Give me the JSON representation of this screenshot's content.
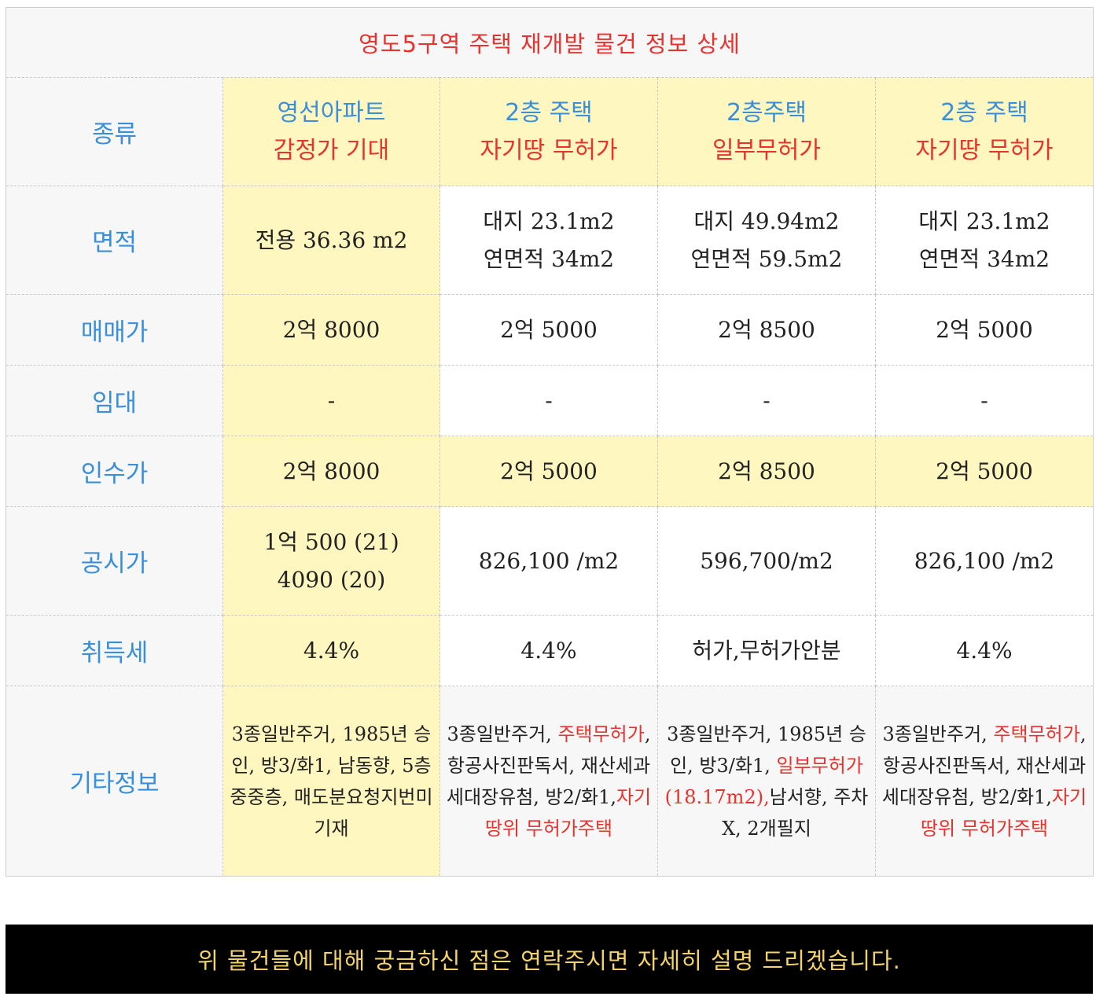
{
  "title": "영도5구역 주택 재개발 물건 정보 상세",
  "labels": {
    "type": "종류",
    "area": "면적",
    "sale": "매매가",
    "lease": "임대",
    "acq": "인수가",
    "official": "공시가",
    "tax": "취득세",
    "etc": "기타정보"
  },
  "properties": [
    {
      "type_line1": "영선아파트",
      "type_line2": "감정가 기대",
      "area": [
        "전용 36.36 m2"
      ],
      "sale": "2억 8000",
      "lease": "-",
      "acq": "2억 8000",
      "official": [
        "1억 500 (21)",
        "4090 (20)"
      ],
      "tax": "4.4%",
      "etc": [
        {
          "text": "3종일반주거, 1985년 승인, 방3/화1, 남동향, 5층중중층, 매도분요청지번미기재",
          "red": false
        }
      ]
    },
    {
      "type_line1": "2층 주택",
      "type_line2": "자기땅 무허가",
      "area": [
        "대지 23.1m2",
        "연면적 34m2"
      ],
      "sale": "2억 5000",
      "lease": "-",
      "acq": "2억 5000",
      "official": [
        "826,100 /m2"
      ],
      "tax": "4.4%",
      "etc": [
        {
          "text": "3종일반주거, ",
          "red": false
        },
        {
          "text": "주택무허가",
          "red": true
        },
        {
          "text": ", 항공사진판독서, 재산세과세대장유첨, 방2/화1,",
          "red": false
        },
        {
          "text": "자기땅위 무허가주택",
          "red": true
        }
      ]
    },
    {
      "type_line1": "2층주택",
      "type_line2": "일부무허가",
      "area": [
        "대지 49.94m2",
        "연면적 59.5m2"
      ],
      "sale": "2억 8500",
      "lease": "-",
      "acq": "2억 8500",
      "official": [
        "596,700/m2"
      ],
      "tax": "허가,무허가안분",
      "etc": [
        {
          "text": "3종일반주거, 1985년 승인, 방3/화1, ",
          "red": false
        },
        {
          "text": "일부무허가(18.17m2),",
          "red": true
        },
        {
          "text": "남서향, 주차X, 2개필지",
          "red": false
        }
      ]
    },
    {
      "type_line1": "2층 주택",
      "type_line2": "자기땅 무허가",
      "area": [
        "대지 23.1m2",
        "연면적 34m2"
      ],
      "sale": "2억 5000",
      "lease": "-",
      "acq": "2억 5000",
      "official": [
        "826,100 /m2"
      ],
      "tax": "4.4%",
      "etc": [
        {
          "text": "3종일반주거, ",
          "red": false
        },
        {
          "text": "주택무허가",
          "red": true
        },
        {
          "text": ", 항공사진판독서, 재산세과세대장유첨, 방2/화1,",
          "red": false
        },
        {
          "text": "자기땅위 무허가주택",
          "red": true
        }
      ]
    }
  ],
  "footer": "위 물건들에 대해 궁금하신 점은 연락주시면 자세히 설명 드리겠습니다.",
  "colors": {
    "title_red": "#e8322e",
    "label_blue": "#3a8fd8",
    "highlight_yellow": "#fff7bf",
    "footer_bg": "#000000",
    "footer_text": "#f5d36b"
  }
}
